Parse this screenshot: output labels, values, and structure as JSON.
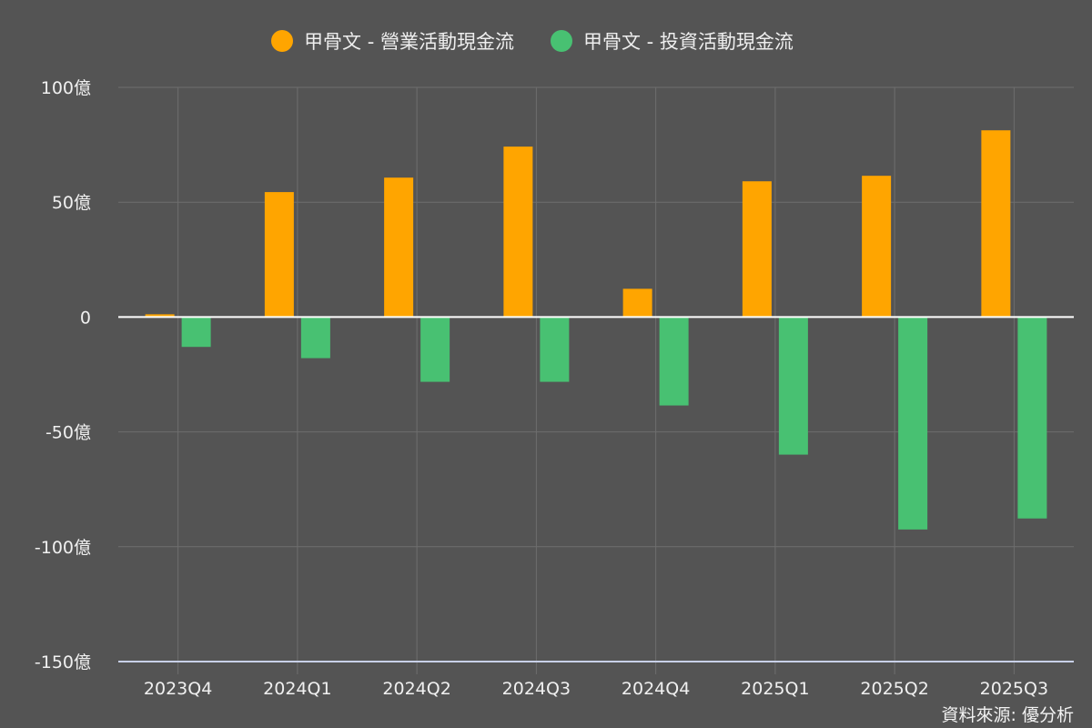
{
  "chart_data": {
    "type": "bar",
    "categories": [
      "2023Q4",
      "2024Q1",
      "2024Q2",
      "2024Q3",
      "2024Q4",
      "2025Q1",
      "2025Q2",
      "2025Q3"
    ],
    "series": [
      {
        "name": "甲骨文 - 營業活動現金流",
        "color": "#ffa500",
        "values": [
          1.2,
          54.4,
          60.7,
          74.2,
          12.3,
          59.1,
          61.5,
          81.3
        ]
      },
      {
        "name": "甲骨文 - 投資活動現金流",
        "color": "#48c172",
        "values": [
          -13,
          -17.9,
          -28.2,
          -28.2,
          -38.5,
          -59.9,
          -92.5,
          -87.7
        ]
      }
    ],
    "yticks": [
      100,
      50,
      0,
      -50,
      -100,
      -150
    ],
    "ytick_labels": [
      "100億",
      "50億",
      "0",
      "-50億",
      "-100億",
      "-150億"
    ],
    "ylim": [
      -150,
      100
    ],
    "grid": true,
    "legend": "top-center"
  },
  "source": "資料來源: 優分析"
}
